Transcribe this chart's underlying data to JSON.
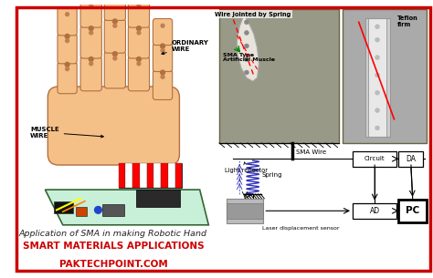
{
  "bg_color": "#ffffff",
  "border_color": "#cc0000",
  "border_width": 2.5,
  "title_text": "Application of SMA in making Robotic Hand",
  "title_color": "#222222",
  "title_fontsize": 6.8,
  "subtitle_text": "SMART MATERIALS APPLICATIONS",
  "subtitle_color": "#cc0000",
  "subtitle_fontsize": 7.5,
  "website_text": "PAKTECHPOINT.COM",
  "website_color": "#cc0000",
  "website_fontsize": 7.5,
  "ordinary_wire_text": "ORDINARY\nWIRE",
  "muscle_wire_text": "MUSCLE\nWIRE",
  "hand_color": "#f5c088",
  "hand_edge": "#b07040",
  "board_color": "#c8f0d8",
  "wire_jointed_text": "Wire Jointed by Spring",
  "sma_type_text": "SMA Type\nArtificial Muscle",
  "teflon_firm_text": "Teflon\nfirm",
  "sma_wire_text": "SMA Wire",
  "light_reflector_text": "Light reflector",
  "spring_text": "Spring",
  "circuit_text": "Circuit",
  "da_text": "DA",
  "ad_text": "AD",
  "pc_text": "PC",
  "laser_text": "Laser displacement sensor",
  "photo1_bg": "#999988",
  "photo2_bg": "#aaaaaa",
  "spring_color": "#3333bb",
  "arrow_color": "#3333bb"
}
